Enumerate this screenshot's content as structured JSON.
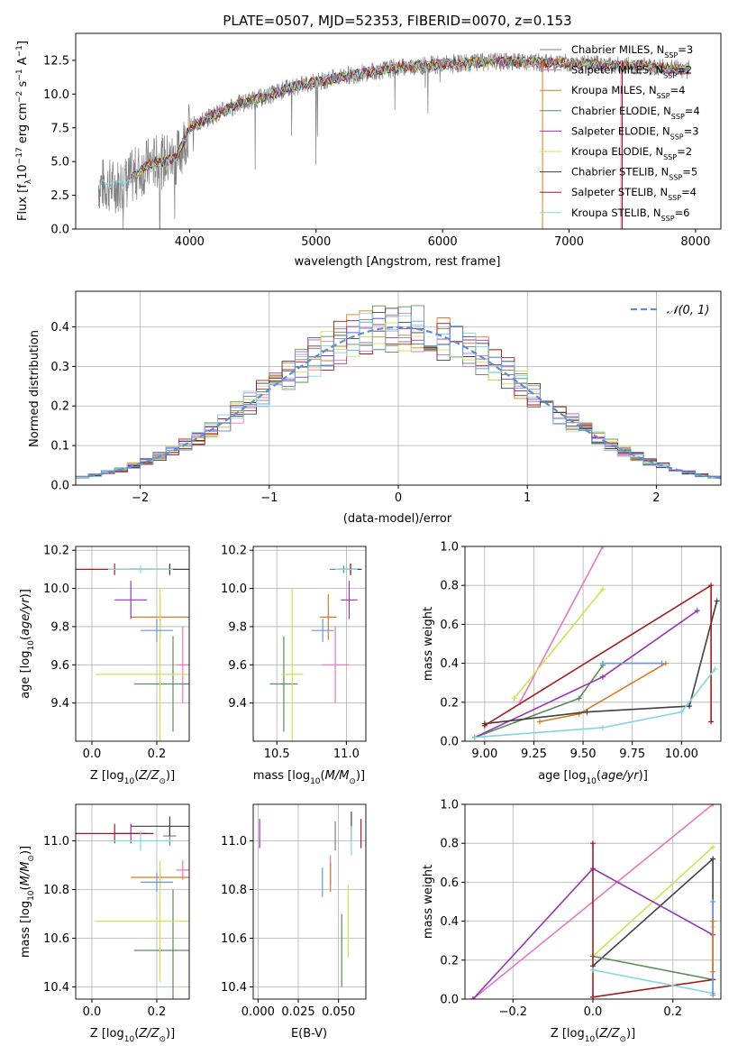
{
  "figure_title": "PLATE=0507, MJD=52353, FIBERID=0070, z=0.153",
  "colors": {
    "chab_miles": "#808080",
    "salp_miles": "#e377c2",
    "krou_miles": "#d97b21",
    "chab_elodie": "#5a8c56",
    "salp_elodie": "#9834b4",
    "krou_elodie": "#cfe250",
    "chab_stelib": "#404040",
    "salp_stelib": "#a31c1c",
    "krou_stelib": "#80d7e0",
    "blue": "#6495ed",
    "grid": "#b0b0b0"
  },
  "chart_data": [
    {
      "id": "spectrum",
      "type": "line",
      "xlabel": "wavelength [Angstrom, rest frame]",
      "ylabel": "Flux [f_λ 10^-17 erg cm^-2 s^-1 A^-1]",
      "xlim": [
        3100,
        8200
      ],
      "ylim": [
        0,
        14.5
      ],
      "xticks": [
        "4000",
        "5000",
        "6000",
        "7000",
        "8000"
      ],
      "yticks": [
        "0.0",
        "2.5",
        "5.0",
        "7.5",
        "10.0",
        "12.5"
      ],
      "legend_position": "upper-right",
      "legend": [
        {
          "sym": "Chabrier MILES, N",
          "sub": "SSP",
          "eq": "=3",
          "color": "#808080"
        },
        {
          "sym": "Salpeter MILES, N",
          "sub": "SSP",
          "eq": "=2",
          "color": "#e377c2"
        },
        {
          "sym": "Kroupa MILES, N",
          "sub": "SSP",
          "eq": "=4",
          "color": "#d97b21"
        },
        {
          "sym": "Chabrier ELODIE, N",
          "sub": "SSP",
          "eq": "=4",
          "color": "#5a8c56"
        },
        {
          "sym": "Salpeter ELODIE, N",
          "sub": "SSP",
          "eq": "=3",
          "color": "#9834b4"
        },
        {
          "sym": "Kroupa ELODIE, N",
          "sub": "SSP",
          "eq": "=2",
          "color": "#cfe250"
        },
        {
          "sym": "Chabrier STELIB, N",
          "sub": "SSP",
          "eq": "=5",
          "color": "#404040"
        },
        {
          "sym": "Salpeter STELIB, N",
          "sub": "SSP",
          "eq": "=4",
          "color": "#a31c1c"
        },
        {
          "sym": "Kroupa STELIB, N",
          "sub": "SSP",
          "eq": "=6",
          "color": "#80d7e0"
        }
      ],
      "continuum_x": [
        3280,
        3400,
        3500,
        3600,
        3700,
        3800,
        3900,
        4000,
        4100,
        4200,
        4400,
        4600,
        4800,
        5000,
        5200,
        5400,
        5600,
        5800,
        6000,
        6200,
        6400,
        6600,
        6800,
        7000,
        7200,
        7400,
        7600,
        7800,
        7950
      ],
      "continuum_y": [
        3.3,
        3.2,
        3.4,
        4.3,
        4.9,
        5.0,
        5.3,
        7.5,
        8.0,
        8.5,
        9.3,
        9.8,
        10.5,
        10.9,
        11.3,
        11.6,
        11.9,
        12.1,
        12.2,
        12.3,
        12.4,
        12.4,
        12.3,
        12.3,
        12.2,
        12.1,
        12.1,
        11.9,
        11.8
      ]
    },
    {
      "id": "residuals",
      "type": "histogram",
      "xlabel": "(data-model)/error",
      "ylabel": "Normed distribution",
      "xlim": [
        -2.5,
        2.5
      ],
      "ylim": [
        0,
        0.49
      ],
      "xticks": [
        "−2",
        "−1",
        "0",
        "1",
        "2"
      ],
      "yticks": [
        "0.0",
        "0.1",
        "0.2",
        "0.3",
        "0.4"
      ],
      "legend": "N(0,1)",
      "legend_position": "upper-right"
    },
    {
      "id": "age_vs_Z",
      "type": "errorbar",
      "xlabel": "Z [log10(Z/Z_sun)]",
      "ylabel": "age [log10(age/yr)]",
      "xlim": [
        -0.05,
        0.3
      ],
      "ylim": [
        9.2,
        10.22
      ],
      "xticks": [
        "0.0",
        "0.2"
      ],
      "yticks": [
        "9.4",
        "9.6",
        "9.8",
        "10.0",
        "10.2"
      ]
    },
    {
      "id": "age_vs_mass",
      "type": "errorbar",
      "xlabel": "mass [log10(M/M_sun)]",
      "xlim": [
        10.33,
        11.14
      ],
      "ylim": [
        9.2,
        10.22
      ],
      "xticks": [
        "10.5",
        "11.0"
      ],
      "yticks": [
        "9.4",
        "9.6",
        "9.8",
        "10.0",
        "10.2"
      ]
    },
    {
      "id": "massweight_vs_age",
      "type": "line",
      "xlabel": "age [log10(age/yr)]",
      "ylabel": "mass weight",
      "xlim": [
        8.9,
        10.2
      ],
      "ylim": [
        0,
        1
      ],
      "xticks": [
        "9.00",
        "9.25",
        "9.50",
        "9.75",
        "10.00"
      ],
      "yticks": [
        "0.0",
        "0.2",
        "0.4",
        "0.6",
        "0.8",
        "1.0"
      ]
    },
    {
      "id": "mass_vs_Z",
      "type": "errorbar",
      "xlabel": "Z [log10(Z/Z_sun)]",
      "ylabel": "mass [log10(M/M_sun)]",
      "xlim": [
        -0.05,
        0.3
      ],
      "ylim": [
        10.35,
        11.15
      ],
      "xticks": [
        "0.0",
        "0.2"
      ],
      "yticks": [
        "10.4",
        "10.6",
        "10.8",
        "11.0"
      ]
    },
    {
      "id": "mass_vs_ebv",
      "type": "errorbar",
      "xlabel": "E(B-V)",
      "xlim": [
        -0.003,
        0.067
      ],
      "ylim": [
        10.35,
        11.15
      ],
      "xticks": [
        "0.000",
        "0.025",
        "0.050"
      ],
      "yticks": [
        "10.4",
        "10.6",
        "10.8",
        "11.0"
      ]
    },
    {
      "id": "massweight_vs_Z",
      "type": "line",
      "xlabel": "Z [log10(Z/Z_sun)]",
      "ylabel": "mass weight",
      "xlim": [
        -0.32,
        0.32
      ],
      "ylim": [
        0,
        1
      ],
      "xticks": [
        "−0.2",
        "0.0",
        "0.2"
      ],
      "yticks": [
        "0.0",
        "0.2",
        "0.4",
        "0.6",
        "0.8",
        "1.0"
      ]
    }
  ],
  "models": [
    {
      "key": "chab_miles",
      "Z": 0.24,
      "zx": 0.02,
      "age": 10.1,
      "ay": 0.02,
      "mass": 10.98,
      "mx": 0.1,
      "mass_y": 11.02,
      "ebv": 0.048,
      "ages": [],
      "weights": []
    },
    {
      "key": "salp_miles",
      "Z": 0.28,
      "zx": 0.02,
      "age": 9.6,
      "ay": 0.2,
      "mass": 10.92,
      "mx": 0.1,
      "mass_y": 10.88,
      "ebv": 0.045,
      "ages": [
        9.18,
        9.6
      ],
      "weights": [
        0.2,
        1.0
      ]
    },
    {
      "key": "krou_miles",
      "Z": 0.21,
      "zx": 0.09,
      "age": 9.85,
      "ay": 0.12,
      "mass": 10.87,
      "mx": 0.06,
      "mass_y": 10.85,
      "ebv": 0.045,
      "ages": [
        9.28,
        9.48,
        9.92
      ],
      "weights": [
        0.1,
        0.14,
        0.4
      ]
    },
    {
      "key": "chab_elodie",
      "Z": 0.25,
      "zx": 0.12,
      "age": 9.5,
      "ay": 0.25,
      "mass": 10.55,
      "mx": 0.1,
      "mass_y": 10.55,
      "ebv": 0.052,
      "ages": [
        8.95,
        9.48,
        9.6
      ],
      "weights": [
        0.02,
        0.22,
        0.39
      ]
    },
    {
      "key": "salp_elodie",
      "Z": 0.12,
      "zx": 0.05,
      "age": 9.94,
      "ay": 0.1,
      "mass": 11.02,
      "mx": 0.06,
      "mass_y": 11.03,
      "ebv": 0.001,
      "ages": [
        8.95,
        9.6,
        10.08
      ],
      "weights": [
        0.02,
        0.33,
        0.67
      ]
    },
    {
      "key": "krou_elodie",
      "Z": 0.21,
      "zx": 0.2,
      "age": 9.55,
      "ay": 0.45,
      "mass": 10.61,
      "mx": 0.08,
      "mass_y": 10.67,
      "ebv": 0.056,
      "ages": [
        9.15,
        9.6
      ],
      "weights": [
        0.22,
        0.78
      ]
    },
    {
      "key": "chab_stelib",
      "Z": 0.24,
      "zx": 0.12,
      "age": 10.1,
      "ay": 0.03,
      "mass": 11.03,
      "mx": 0.08,
      "mass_y": 11.06,
      "ebv": 0.058,
      "ages": [
        9.0,
        9.52,
        10.04,
        10.18
      ],
      "weights": [
        0.09,
        0.15,
        0.18,
        0.72
      ]
    },
    {
      "key": "salp_stelib",
      "Z": 0.07,
      "zx": 0.12,
      "age": 10.1,
      "ay": 0.03,
      "mass": 11.03,
      "mx": 0.05,
      "mass_y": 11.03,
      "ebv": 0.064,
      "ages": [
        9.0,
        10.15,
        10.15
      ],
      "weights": [
        0.08,
        0.8,
        0.1
      ]
    },
    {
      "key": "krou_stelib",
      "Z": 0.15,
      "zx": 0.1,
      "age": 10.1,
      "ay": 0.02,
      "mass": 11.0,
      "mx": 0.08,
      "mass_y": 11.0,
      "ebv": 0.058,
      "ages": [
        8.95,
        9.6,
        10.0,
        10.17
      ],
      "weights": [
        0.02,
        0.07,
        0.15,
        0.37
      ]
    },
    {
      "key": "blue",
      "Z": 0.2,
      "zx": 0.05,
      "age": 9.78,
      "ay": 0.06,
      "mass": 10.83,
      "mx": 0.08,
      "mass_y": 10.83,
      "ebv": 0.04,
      "ages": [
        9.6,
        9.9
      ],
      "weights": [
        0.4,
        0.4
      ]
    }
  ],
  "mwz": [
    {
      "key": "salp_miles",
      "pts": [
        [
          -0.3,
          0.0
        ],
        [
          0.3,
          1.0
        ]
      ]
    },
    {
      "key": "krou_elodie",
      "pts": [
        [
          0.0,
          0.22
        ],
        [
          0.3,
          0.78
        ]
      ]
    },
    {
      "key": "chab_stelib",
      "pts": [
        [
          0.0,
          0.17
        ],
        [
          0.3,
          0.72
        ],
        [
          0.3,
          0.1
        ]
      ]
    },
    {
      "key": "salp_elodie",
      "pts": [
        [
          -0.3,
          0.0
        ],
        [
          0.0,
          0.67
        ],
        [
          0.3,
          0.33
        ]
      ]
    },
    {
      "key": "chab_elodie",
      "pts": [
        [
          0.0,
          0.22
        ],
        [
          0.3,
          0.1
        ]
      ]
    },
    {
      "key": "salp_stelib",
      "pts": [
        [
          0.0,
          0.8
        ],
        [
          0.0,
          0.01
        ],
        [
          0.3,
          0.1
        ]
      ]
    },
    {
      "key": "krou_stelib",
      "pts": [
        [
          0.0,
          0.15
        ],
        [
          0.3,
          0.03
        ],
        [
          0.3,
          0.37
        ]
      ]
    },
    {
      "key": "blue",
      "pts": [
        [
          0.3,
          0.5
        ],
        [
          0.3,
          0.02
        ]
      ]
    },
    {
      "key": "krou_miles",
      "pts": [
        [
          0.3,
          0.14
        ],
        [
          0.3,
          0.4
        ]
      ]
    }
  ]
}
